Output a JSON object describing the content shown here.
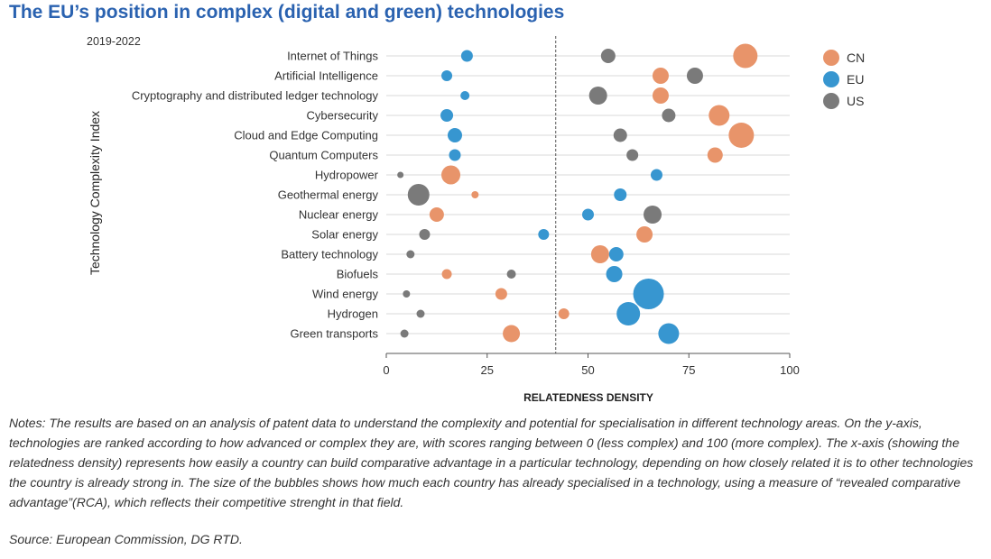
{
  "title": "The EU’s position in complex (digital and green) technologies",
  "subtitle": "2019-2022",
  "notes": "Notes: The results are based on an analysis of patent data to understand the complexity and potential for specialisation in different technology areas. On the y-axis, technologies are ranked according to how advanced or complex they are, with scores ranging between 0 (less complex) and 100 (more complex). The x-axis (showing the relatedness density) represents how easily a country can build comparative advantage in a particular technology, depending on how closely related it is to other technologies the country is already strong in. The size of the bubbles shows how much each country has already specialised in a technology, using a measure of “revealed comparative advantage”(RCA), which reflects their competitive strenght in that field.",
  "source": "Source: European Commission, DG RTD.",
  "legend": [
    {
      "label": "CN",
      "color": "#e8946a"
    },
    {
      "label": "EU",
      "color": "#3796d0"
    },
    {
      "label": "US",
      "color": "#7a7a7a"
    }
  ],
  "chart_data": {
    "type": "scatter",
    "xlabel": "RELATEDNESS DENSITY",
    "ylabel": "Technology Complexity Index",
    "xlim": [
      0,
      100
    ],
    "xticks": [
      "0",
      "25",
      "50",
      "75",
      "100"
    ],
    "reference_line_x": 42,
    "categories": [
      "Internet of Things",
      "Artificial Intelligence",
      "Cryptography and distributed ledger technology",
      "Cybersecurity",
      "Cloud and Edge Computing",
      "Quantum Computers",
      "Hydropower",
      "Geothermal energy",
      "Nuclear energy",
      "Solar energy",
      "Battery technology",
      "Biofuels",
      "Wind energy",
      "Hydrogen",
      "Green transports"
    ],
    "series": [
      {
        "name": "CN",
        "color": "#e8946a",
        "x": [
          89,
          68,
          68,
          82.5,
          88,
          81.5,
          16,
          22,
          12.5,
          64,
          53,
          15,
          28.5,
          44,
          31
        ],
        "size": [
          13.5,
          9,
          9,
          11.5,
          14,
          8.5,
          10.5,
          4,
          8,
          9,
          10,
          5.5,
          6.5,
          6,
          9.5
        ]
      },
      {
        "name": "EU",
        "color": "#3796d0",
        "x": [
          20,
          15,
          19.5,
          15,
          17,
          17,
          67,
          58,
          50,
          39,
          57,
          56.5,
          65,
          60,
          70
        ],
        "size": [
          6.5,
          6,
          5,
          7,
          8,
          6.5,
          6.5,
          7,
          6.5,
          6,
          8,
          9,
          17,
          13,
          11.5
        ]
      },
      {
        "name": "US",
        "color": "#7a7a7a",
        "x": [
          55,
          76.5,
          52.5,
          70,
          58,
          61,
          3.5,
          8,
          66,
          9.5,
          6,
          31,
          5,
          8.5,
          4.5
        ],
        "size": [
          8,
          9,
          10,
          7.5,
          7.5,
          6.5,
          3.5,
          12,
          10,
          6,
          4.5,
          5,
          4,
          4.5,
          4.5
        ]
      }
    ]
  }
}
